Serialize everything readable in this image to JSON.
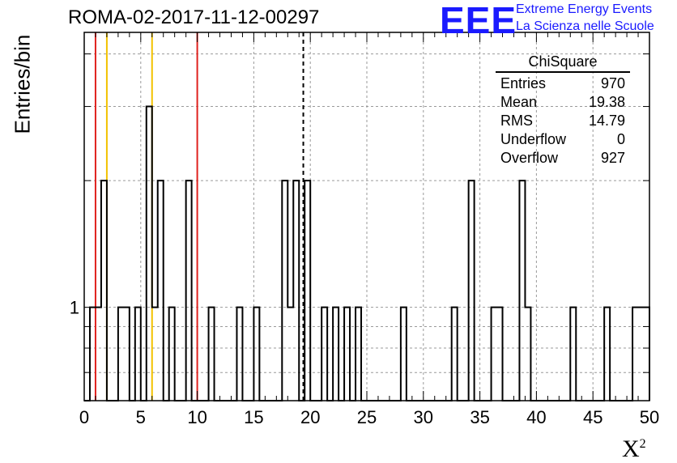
{
  "header": {
    "title": "ROMA-02-2017-11-12-00297",
    "logo_mark": "EEE",
    "logo_line1": "Extreme Energy Events",
    "logo_line2": "La Scienza nelle Scuole"
  },
  "stats_box": {
    "title": "ChiSquare",
    "rows": [
      {
        "label": "Entries",
        "value": "970"
      },
      {
        "label": "Mean",
        "value": "19.38"
      },
      {
        "label": "RMS",
        "value": "14.79"
      },
      {
        "label": "Underflow",
        "value": "0"
      },
      {
        "label": "Overflow",
        "value": "927"
      }
    ]
  },
  "chart_data": {
    "type": "bar",
    "histogram": true,
    "xlabel": "X",
    "xlabel_superscript": "2",
    "ylabel": "Entries/bin",
    "xlim": [
      0,
      50
    ],
    "ylim": [
      0.6,
      4.5
    ],
    "yscale": "log",
    "xticks": [
      "0",
      "5",
      "10",
      "15",
      "20",
      "25",
      "30",
      "35",
      "40",
      "45",
      "50"
    ],
    "yticks": [
      "1"
    ],
    "grid": true,
    "bin_width": 0.5,
    "bins": [
      {
        "x": 0.5,
        "value": 1
      },
      {
        "x": 1.0,
        "value": 1
      },
      {
        "x": 1.5,
        "value": 2
      },
      {
        "x": 3.0,
        "value": 1
      },
      {
        "x": 3.5,
        "value": 1
      },
      {
        "x": 4.5,
        "value": 1
      },
      {
        "x": 5.5,
        "value": 3
      },
      {
        "x": 6.0,
        "value": 1
      },
      {
        "x": 6.5,
        "value": 2
      },
      {
        "x": 7.5,
        "value": 1
      },
      {
        "x": 9.0,
        "value": 2
      },
      {
        "x": 11.0,
        "value": 1
      },
      {
        "x": 13.5,
        "value": 1
      },
      {
        "x": 15.0,
        "value": 1
      },
      {
        "x": 17.5,
        "value": 2
      },
      {
        "x": 18.0,
        "value": 1
      },
      {
        "x": 18.5,
        "value": 2
      },
      {
        "x": 19.5,
        "value": 2
      },
      {
        "x": 21.0,
        "value": 1
      },
      {
        "x": 22.0,
        "value": 1
      },
      {
        "x": 23.0,
        "value": 1
      },
      {
        "x": 24.0,
        "value": 1
      },
      {
        "x": 28.0,
        "value": 1
      },
      {
        "x": 32.5,
        "value": 1
      },
      {
        "x": 34.0,
        "value": 2
      },
      {
        "x": 36.0,
        "value": 1
      },
      {
        "x": 36.5,
        "value": 1
      },
      {
        "x": 38.5,
        "value": 2
      },
      {
        "x": 39.0,
        "value": 1
      },
      {
        "x": 43.0,
        "value": 1
      },
      {
        "x": 46.0,
        "value": 1
      },
      {
        "x": 48.5,
        "value": 1
      },
      {
        "x": 49.0,
        "value": 1
      },
      {
        "x": 49.5,
        "value": 1
      }
    ],
    "reference_lines": [
      {
        "x": 1,
        "color": "#e0221e",
        "style": "solid"
      },
      {
        "x": 2,
        "color": "#f2c200",
        "style": "solid"
      },
      {
        "x": 6,
        "color": "#f2c200",
        "style": "solid"
      },
      {
        "x": 10,
        "color": "#e0221e",
        "style": "solid"
      },
      {
        "x": 19.38,
        "color": "#000000",
        "style": "dashed"
      }
    ]
  }
}
